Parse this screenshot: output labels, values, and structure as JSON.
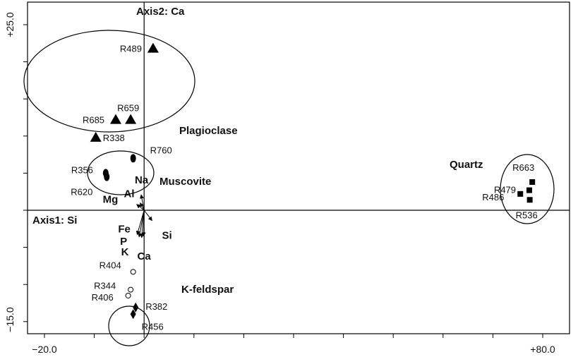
{
  "chart_data": {
    "type": "scatter",
    "xlabel": "Axis1: Si",
    "ylabel": "Axis2: Ca",
    "xlim": [
      -20.0,
      80.0
    ],
    "ylim": [
      -15.0,
      25.0
    ],
    "x_tick_labels": [
      "-20.0",
      "+80.0"
    ],
    "y_tick_labels": [
      "+25.0",
      "-15.0"
    ],
    "x_tick_label_text": [
      "−20.0",
      "+80.0"
    ],
    "y_tick_label_text": [
      "+25.0",
      "−15.0"
    ],
    "grid": false,
    "series": [
      {
        "name": "Plagioclase",
        "marker": "triangle",
        "points": [
          {
            "id": "R489",
            "x": 1.8,
            "y": 21.8
          },
          {
            "id": "R659",
            "x": -2.7,
            "y": 12.2
          },
          {
            "id": "R685",
            "x": -5.7,
            "y": 12.2
          },
          {
            "id": "R338",
            "x": -9.7,
            "y": 9.8
          }
        ]
      },
      {
        "name": "Muscovite",
        "marker": "ellipse",
        "points": [
          {
            "id": "R760",
            "x": -2.2,
            "y": 7.0
          },
          {
            "id": "R356",
            "x": -7.7,
            "y": 5.0
          },
          {
            "id": "R620",
            "x": -7.5,
            "y": 4.5
          }
        ]
      },
      {
        "name": "Quartz",
        "marker": "square",
        "points": [
          {
            "id": "R663",
            "x": 77.9,
            "y": 3.8
          },
          {
            "id": "R479",
            "x": 77.3,
            "y": 2.7
          },
          {
            "id": "R486",
            "x": 75.5,
            "y": 2.2
          },
          {
            "id": "R536",
            "x": 77.4,
            "y": 1.4
          }
        ]
      },
      {
        "name": "K-feldspar",
        "marker": "open-circle",
        "points": [
          {
            "id": "R404",
            "x": -2.2,
            "y": -8.3
          },
          {
            "id": "R344",
            "x": -2.7,
            "y": -10.7
          },
          {
            "id": "R406",
            "x": -3.2,
            "y": -11.5
          }
        ]
      },
      {
        "name": "",
        "marker": "diamond",
        "points": [
          {
            "id": "R382",
            "x": -1.7,
            "y": -13.1
          },
          {
            "id": "R456",
            "x": -2.2,
            "y": -14.0
          }
        ]
      }
    ],
    "variable_vectors": [
      {
        "name": "Na",
        "x": -0.6,
        "y": 2.1
      },
      {
        "name": "Al",
        "x": -0.8,
        "y": 1.0
      },
      {
        "name": "Mg",
        "x": -1.5,
        "y": 0.8
      },
      {
        "name": "Si",
        "x": 1.6,
        "y": -1.4
      },
      {
        "name": "Fe",
        "x": -1.4,
        "y": -3.3
      },
      {
        "name": "P",
        "x": -1.0,
        "y": -3.6
      },
      {
        "name": "K",
        "x": -0.5,
        "y": -3.7
      },
      {
        "name": "Ca",
        "x": -0.1,
        "y": -3.5
      }
    ],
    "group_labels": [
      "Plagioclase",
      "Muscovite",
      "Quartz",
      "K-feldspar"
    ]
  }
}
